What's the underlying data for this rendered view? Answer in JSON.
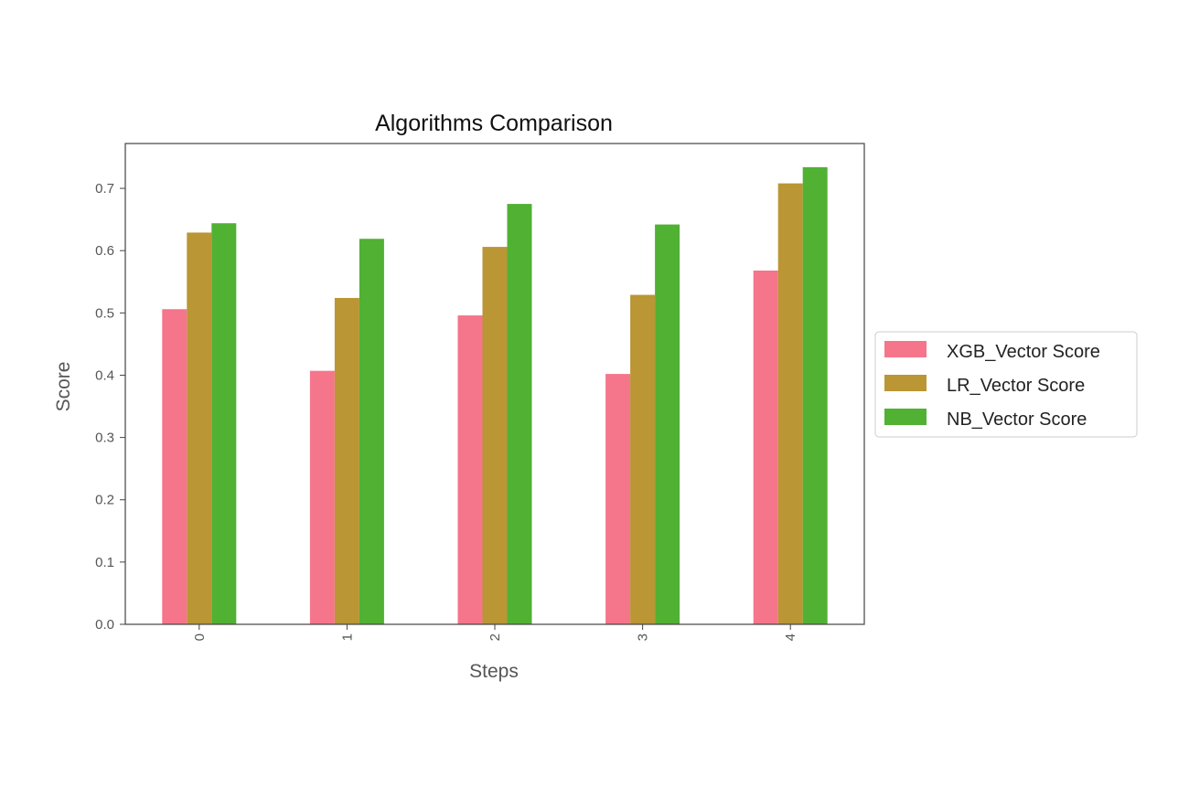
{
  "chart_data": {
    "type": "bar",
    "title": "Algorithms Comparison",
    "xlabel": "Steps",
    "ylabel": "Score",
    "categories": [
      "0",
      "1",
      "2",
      "3",
      "4"
    ],
    "series": [
      {
        "name": "XGB_Vector Score",
        "color": "#f5758b",
        "values": [
          0.506,
          0.407,
          0.496,
          0.402,
          0.568
        ]
      },
      {
        "name": "LR_Vector Score",
        "color": "#ba9634",
        "values": [
          0.629,
          0.524,
          0.606,
          0.529,
          0.708
        ]
      },
      {
        "name": "NB_Vector Score",
        "color": "#50b133",
        "values": [
          0.644,
          0.619,
          0.675,
          0.642,
          0.734
        ]
      }
    ],
    "ylim": [
      0,
      0.772
    ],
    "yticks": [
      "0.0",
      "0.1",
      "0.2",
      "0.3",
      "0.4",
      "0.5",
      "0.6",
      "0.7"
    ],
    "x_tick_rotation": "vertical",
    "grid": false,
    "legend_position": "right, outside plot"
  }
}
